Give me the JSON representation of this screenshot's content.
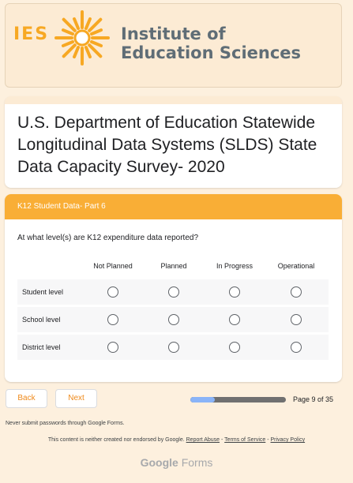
{
  "header": {
    "logo_abbrev": "IES",
    "institute_line1": "Institute of",
    "institute_line2": "Education Sciences",
    "accent_color": "#f7a823"
  },
  "form": {
    "title": "U.S. Department of Education Statewide Longitudinal Data Systems (SLDS) State Data Capacity Survey- 2020"
  },
  "section": {
    "title": "K12 Student Data- Part 6",
    "question": "At what level(s) are K12 expenditure data reported?",
    "columns": [
      "Not Planned",
      "Planned",
      "In Progress",
      "Operational"
    ],
    "rows": [
      "Student level",
      "School level",
      "District level"
    ]
  },
  "nav": {
    "back_label": "Back",
    "next_label": "Next",
    "page_label": "Page 9 of 35",
    "progress_fraction": 0.257
  },
  "footer": {
    "password_warning": "Never submit passwords through Google Forms.",
    "disclaimer": "This content is neither created nor endorsed by Google.",
    "report_abuse": "Report Abuse",
    "terms": "Terms of Service",
    "privacy": "Privacy Policy",
    "separator": " - ",
    "brand_google": "Google",
    "brand_forms": "Forms"
  }
}
